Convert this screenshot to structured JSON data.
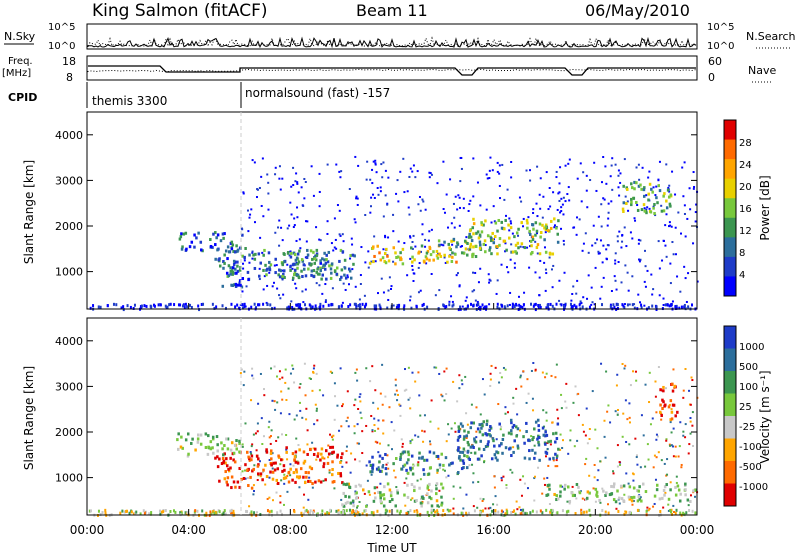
{
  "header": {
    "station": "King Salmon (fitACF)",
    "beam": "Beam 11",
    "date": "06/May/2010"
  },
  "nsky_panel": {
    "left_label": "N.Sky",
    "right_label": "N.Search",
    "y_ticks": [
      "10^5",
      "10^0"
    ]
  },
  "freq_panel": {
    "left_label_line1": "Freq.",
    "left_label_line2": "[MHz]",
    "right_label": "Nave",
    "left_ticks": [
      "18",
      "8"
    ],
    "right_ticks": [
      "60",
      "0"
    ]
  },
  "cpid_panel": {
    "label": "CPID",
    "programs": [
      {
        "name": "themis 3300",
        "start_hour": 0
      },
      {
        "name": "normalsound (fast) -157",
        "start_hour": 6
      }
    ]
  },
  "chart_data": [
    {
      "type": "heatmap",
      "name": "power",
      "xlabel": "",
      "ylabel": "Slant Range [km]",
      "xlim": [
        0,
        24
      ],
      "ylim": [
        180,
        4500
      ],
      "y_ticks": [
        1000,
        2000,
        3000,
        4000
      ],
      "colorbar": {
        "label": "Power [dB]",
        "ticks": [
          "28",
          "24",
          "20",
          "16",
          "12",
          "8",
          "4"
        ],
        "colors": [
          "#e00000",
          "#ff6a00",
          "#ffa500",
          "#e8d000",
          "#78c83c",
          "#3c9650",
          "#2c6e9c",
          "#1e3cc8",
          "#0000ff"
        ]
      },
      "regions": [
        {
          "t0": 3.6,
          "t1": 6.2,
          "r0": 1450,
          "r1": 1900,
          "level": 0.75
        },
        {
          "t0": 5.0,
          "t1": 9.5,
          "r0": 900,
          "r1": 1500,
          "level": 0.7
        },
        {
          "t0": 5.2,
          "t1": 6.4,
          "r0": 650,
          "r1": 1000,
          "level": 0.85
        },
        {
          "t0": 7.5,
          "t1": 10.5,
          "r0": 850,
          "r1": 1500,
          "level": 0.65
        },
        {
          "t0": 11.0,
          "t1": 14.5,
          "r0": 1200,
          "r1": 1600,
          "level": 0.4
        },
        {
          "t0": 13.8,
          "t1": 15.5,
          "r0": 1350,
          "r1": 1900,
          "level": 0.55
        },
        {
          "t0": 15.0,
          "t1": 18.5,
          "r0": 1400,
          "r1": 2200,
          "level": 0.5
        },
        {
          "t0": 21.0,
          "t1": 23.0,
          "r0": 2300,
          "r1": 3000,
          "level": 0.55
        }
      ]
    },
    {
      "type": "heatmap",
      "name": "velocity",
      "xlabel": "Time UT",
      "ylabel": "Slant Range [km]",
      "xlim": [
        0,
        24
      ],
      "ylim": [
        180,
        4500
      ],
      "y_ticks": [
        1000,
        2000,
        3000,
        4000
      ],
      "x_ticks": [
        "00:00",
        "04:00",
        "08:00",
        "12:00",
        "16:00",
        "20:00",
        "00:00"
      ],
      "colorbar": {
        "label": "Velocity [m s⁻¹]",
        "ticks": [
          "1000",
          "500",
          "100",
          "25",
          "-25",
          "-100",
          "-500",
          "-1000"
        ],
        "colors": [
          "#1e3cc8",
          "#2c6e9c",
          "#3c9650",
          "#78c83c",
          "#c8c8c8",
          "#ffa500",
          "#ff6a00",
          "#e00000"
        ]
      },
      "regions": [
        {
          "t0": 5.0,
          "t1": 6.5,
          "r0": 800,
          "r1": 1600,
          "level": 0.9
        },
        {
          "t0": 6.5,
          "t1": 10.0,
          "r0": 900,
          "r1": 1700,
          "level": 0.85
        },
        {
          "t0": 3.5,
          "t1": 6.0,
          "r0": 1500,
          "r1": 2000,
          "level": 0.45
        },
        {
          "t0": 10.0,
          "t1": 14.0,
          "r0": 400,
          "r1": 900,
          "level": 0.45
        },
        {
          "t0": 11.0,
          "t1": 15.0,
          "r0": 1100,
          "r1": 1600,
          "level": 0.25
        },
        {
          "t0": 14.5,
          "t1": 18.5,
          "r0": 1400,
          "r1": 2300,
          "level": 0.15
        },
        {
          "t0": 22.5,
          "t1": 23.2,
          "r0": 2300,
          "r1": 3200,
          "level": 0.9
        },
        {
          "t0": 18.0,
          "t1": 24.0,
          "r0": 500,
          "r1": 900,
          "level": 0.45
        }
      ]
    }
  ]
}
